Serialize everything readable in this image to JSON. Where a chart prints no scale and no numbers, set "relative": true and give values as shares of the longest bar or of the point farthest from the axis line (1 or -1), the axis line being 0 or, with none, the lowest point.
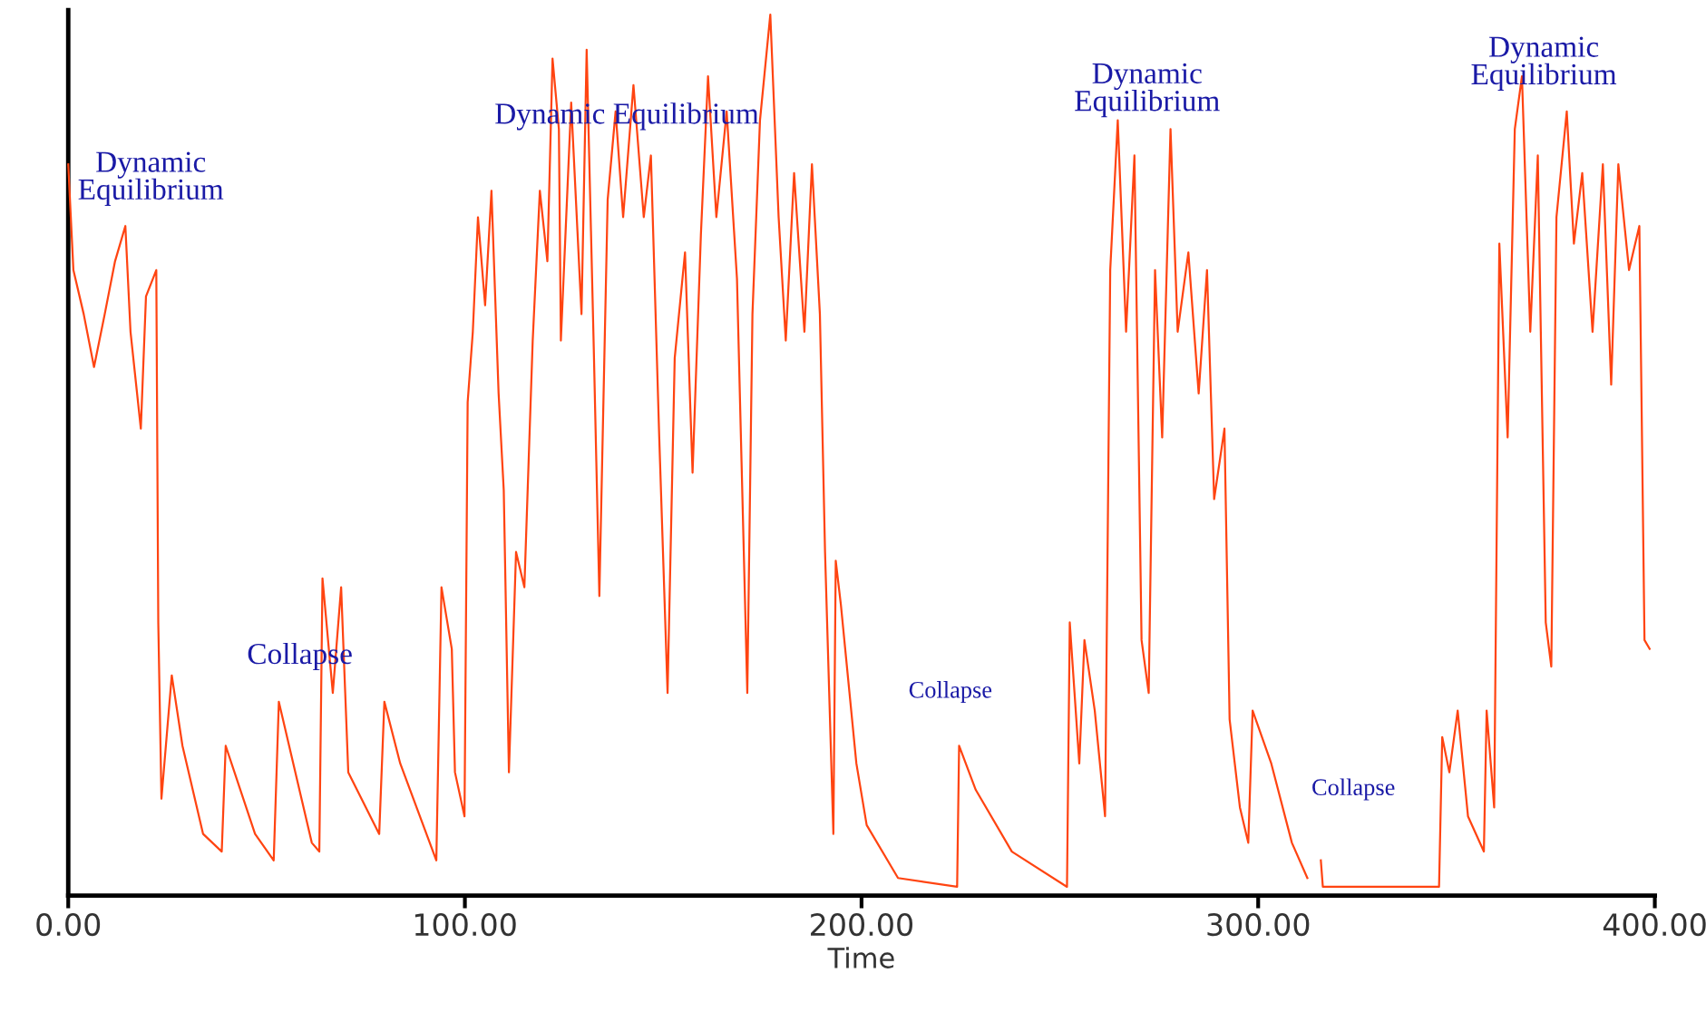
{
  "chart_data": {
    "type": "line",
    "relative": true,
    "xlabel": "Time",
    "xlim": [
      0,
      400
    ],
    "xticks": [
      {
        "value": 0,
        "label": "0.00"
      },
      {
        "value": 100,
        "label": "100.00"
      },
      {
        "value": 200,
        "label": "200.00"
      },
      {
        "value": 300,
        "label": "300.00"
      },
      {
        "value": 400,
        "label": "400.00"
      }
    ],
    "grid": false,
    "legend": false,
    "marker": "none",
    "line_style": "solid",
    "series": [
      {
        "color": "#ff4411",
        "x": [
          0,
          1.3,
          3.9,
          6.5,
          9.2,
          11.8,
          14.4,
          15.7,
          18.3,
          19.6,
          22.2,
          22.7,
          23.5,
          24.8,
          26.1,
          28.8,
          34.0,
          38.7,
          39.7,
          47.1,
          51.8,
          53.1,
          61.4,
          63.3,
          64.1,
          66.7,
          68.8,
          70.6,
          78.4,
          79.7,
          83.7,
          92.8,
          94.1,
          96.7,
          97.5,
          99.9,
          100.7,
          102.0,
          103.3,
          105.1,
          106.7,
          108.5,
          109.8,
          111.1,
          112.9,
          115.0,
          117.1,
          118.9,
          120.8,
          122.1,
          123.7,
          124.2,
          126.8,
          129.4,
          130.7,
          132.5,
          133.9,
          136.0,
          138.0,
          139.9,
          142.5,
          145.1,
          146.9,
          149.0,
          151.1,
          152.9,
          155.5,
          157.4,
          159.5,
          161.3,
          163.4,
          166.0,
          168.6,
          171.2,
          172.5,
          174.4,
          177.0,
          179.1,
          180.9,
          183.0,
          185.6,
          187.5,
          189.5,
          190.8,
          192.9,
          193.5,
          194.8,
          198.7,
          201.3,
          209.2,
          224.1,
          224.6,
          228.8,
          237.9,
          251.8,
          252.5,
          254.9,
          256.2,
          258.8,
          261.4,
          262.7,
          264.6,
          266.7,
          268.8,
          270.6,
          272.4,
          274.0,
          275.8,
          277.9,
          279.7,
          282.4,
          285.0,
          287.1,
          288.9,
          291.5,
          292.8,
          295.4,
          297.5,
          298.6,
          303.3,
          308.5,
          312.4,
          314.0,
          315.8,
          316.3,
          345.6,
          346.4,
          348.2,
          350.3,
          352.9,
          356.9,
          357.6,
          359.5,
          360.8,
          362.9,
          364.7,
          366.5,
          368.6,
          370.5,
          372.5,
          373.9,
          375.2,
          377.8,
          379.6,
          381.7,
          384.3,
          386.9,
          389.0,
          390.8,
          393.5,
          396.1,
          397.4,
          398.7
        ],
        "values": [
          0.83,
          0.71,
          0.66,
          0.6,
          0.66,
          0.72,
          0.76,
          0.64,
          0.53,
          0.68,
          0.71,
          0.31,
          0.11,
          0.18,
          0.25,
          0.17,
          0.07,
          0.05,
          0.17,
          0.07,
          0.04,
          0.22,
          0.06,
          0.05,
          0.36,
          0.23,
          0.35,
          0.14,
          0.07,
          0.22,
          0.15,
          0.04,
          0.35,
          0.28,
          0.14,
          0.09,
          0.56,
          0.64,
          0.77,
          0.67,
          0.8,
          0.57,
          0.46,
          0.14,
          0.39,
          0.35,
          0.63,
          0.8,
          0.72,
          0.95,
          0.87,
          0.63,
          0.9,
          0.66,
          0.96,
          0.62,
          0.34,
          0.79,
          0.89,
          0.77,
          0.92,
          0.77,
          0.84,
          0.52,
          0.23,
          0.61,
          0.73,
          0.48,
          0.75,
          0.93,
          0.77,
          0.89,
          0.7,
          0.23,
          0.66,
          0.88,
          1.0,
          0.77,
          0.63,
          0.82,
          0.64,
          0.83,
          0.66,
          0.39,
          0.07,
          0.38,
          0.33,
          0.15,
          0.08,
          0.02,
          0.01,
          0.17,
          0.12,
          0.05,
          0.01,
          0.31,
          0.15,
          0.29,
          0.21,
          0.09,
          0.71,
          0.88,
          0.64,
          0.84,
          0.29,
          0.23,
          0.71,
          0.52,
          0.87,
          0.64,
          0.73,
          0.57,
          0.71,
          0.45,
          0.53,
          0.2,
          0.1,
          0.06,
          0.21,
          0.15,
          0.06,
          0.02,
          null,
          0.04,
          0.01,
          0.01,
          0.18,
          0.14,
          0.21,
          0.09,
          0.05,
          0.21,
          0.1,
          0.74,
          0.52,
          0.87,
          0.93,
          0.64,
          0.84,
          0.31,
          0.26,
          0.77,
          0.89,
          0.74,
          0.82,
          0.64,
          0.83,
          0.58,
          0.83,
          0.71,
          0.76,
          0.29,
          0.28
        ]
      }
    ],
    "annotations": [
      "Dynamic\nEquilibrium",
      "Collapse",
      "Dynamic Equilibrium",
      "Collapse",
      "Dynamic\nEquilibrium",
      "Collapse",
      "Dynamic\nEquilibrium"
    ]
  }
}
